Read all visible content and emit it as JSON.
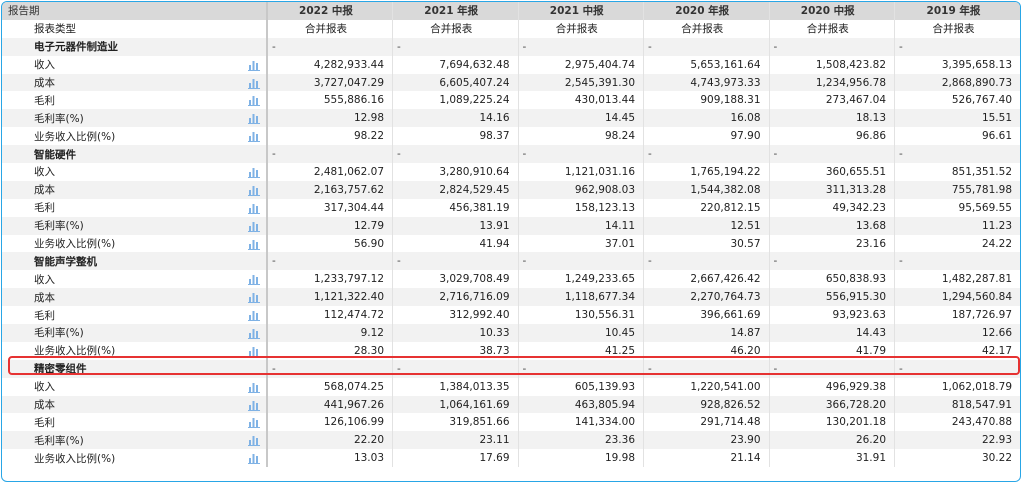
{
  "header": {
    "label": "报告期",
    "periods": [
      "2022 中报",
      "2021 年报",
      "2021 中报",
      "2020 年报",
      "2020 中报",
      "2019 年报"
    ]
  },
  "subheader": {
    "label": "报表类型",
    "values": [
      "合并报表",
      "合并报表",
      "合并报表",
      "合并报表",
      "合并报表",
      "合并报表"
    ]
  },
  "segments": [
    {
      "name": "电子元器件制造业",
      "empty_marker": "-",
      "rows": [
        {
          "label": "收入",
          "values": [
            "4,282,933.44",
            "7,694,632.48",
            "2,975,404.74",
            "5,653,161.64",
            "1,508,423.82",
            "3,395,658.13"
          ]
        },
        {
          "label": "成本",
          "values": [
            "3,727,047.29",
            "6,605,407.24",
            "2,545,391.30",
            "4,743,973.33",
            "1,234,956.78",
            "2,868,890.73"
          ]
        },
        {
          "label": "毛利",
          "values": [
            "555,886.16",
            "1,089,225.24",
            "430,013.44",
            "909,188.31",
            "273,467.04",
            "526,767.40"
          ]
        },
        {
          "label": "毛利率(%)",
          "values": [
            "12.98",
            "14.16",
            "14.45",
            "16.08",
            "18.13",
            "15.51"
          ]
        },
        {
          "label": "业务收入比例(%)",
          "values": [
            "98.22",
            "98.37",
            "98.24",
            "97.90",
            "96.86",
            "96.61"
          ]
        }
      ]
    },
    {
      "name": "智能硬件",
      "empty_marker": "-",
      "rows": [
        {
          "label": "收入",
          "values": [
            "2,481,062.07",
            "3,280,910.64",
            "1,121,031.16",
            "1,765,194.22",
            "360,655.51",
            "851,351.52"
          ]
        },
        {
          "label": "成本",
          "values": [
            "2,163,757.62",
            "2,824,529.45",
            "962,908.03",
            "1,544,382.08",
            "311,313.28",
            "755,781.98"
          ]
        },
        {
          "label": "毛利",
          "values": [
            "317,304.44",
            "456,381.19",
            "158,123.13",
            "220,812.15",
            "49,342.23",
            "95,569.55"
          ]
        },
        {
          "label": "毛利率(%)",
          "values": [
            "12.79",
            "13.91",
            "14.11",
            "12.51",
            "13.68",
            "11.23"
          ]
        },
        {
          "label": "业务收入比例(%)",
          "values": [
            "56.90",
            "41.94",
            "37.01",
            "30.57",
            "23.16",
            "24.22"
          ]
        }
      ]
    },
    {
      "name": "智能声学整机",
      "empty_marker": "-",
      "rows": [
        {
          "label": "收入",
          "values": [
            "1,233,797.12",
            "3,029,708.49",
            "1,249,233.65",
            "2,667,426.42",
            "650,838.93",
            "1,482,287.81"
          ]
        },
        {
          "label": "成本",
          "values": [
            "1,121,322.40",
            "2,716,716.09",
            "1,118,677.34",
            "2,270,764.73",
            "556,915.30",
            "1,294,560.84"
          ]
        },
        {
          "label": "毛利",
          "values": [
            "112,474.72",
            "312,992.40",
            "130,556.31",
            "396,661.69",
            "93,923.63",
            "187,726.97"
          ]
        },
        {
          "label": "毛利率(%)",
          "values": [
            "9.12",
            "10.33",
            "10.45",
            "14.87",
            "14.43",
            "12.66"
          ]
        },
        {
          "label": "业务收入比例(%)",
          "values": [
            "28.30",
            "38.73",
            "41.25",
            "46.20",
            "41.79",
            "42.17"
          ]
        }
      ]
    },
    {
      "name": "精密零组件",
      "empty_marker": "-",
      "rows": [
        {
          "label": "收入",
          "values": [
            "568,074.25",
            "1,384,013.35",
            "605,139.93",
            "1,220,541.00",
            "496,929.38",
            "1,062,018.79"
          ]
        },
        {
          "label": "成本",
          "values": [
            "441,967.26",
            "1,064,161.69",
            "463,805.94",
            "928,826.52",
            "366,728.20",
            "818,547.91"
          ]
        },
        {
          "label": "毛利",
          "values": [
            "126,106.99",
            "319,851.66",
            "141,334.00",
            "291,714.48",
            "130,201.18",
            "243,470.88"
          ]
        },
        {
          "label": "毛利率(%)",
          "values": [
            "22.20",
            "23.11",
            "23.36",
            "23.90",
            "26.20",
            "22.93"
          ]
        },
        {
          "label": "业务收入比例(%)",
          "values": [
            "13.03",
            "17.69",
            "19.98",
            "21.14",
            "31.91",
            "30.22"
          ]
        }
      ]
    }
  ],
  "highlight_note": "智能声学整机 业务收入比例(%) row highlighted",
  "colors": {
    "border": "#29a6e6",
    "highlight": "#e63232",
    "icon": "#7fb2e5",
    "header_bg": "#d9d9d9"
  },
  "icons": {
    "row_chart": "bar-chart-icon"
  }
}
